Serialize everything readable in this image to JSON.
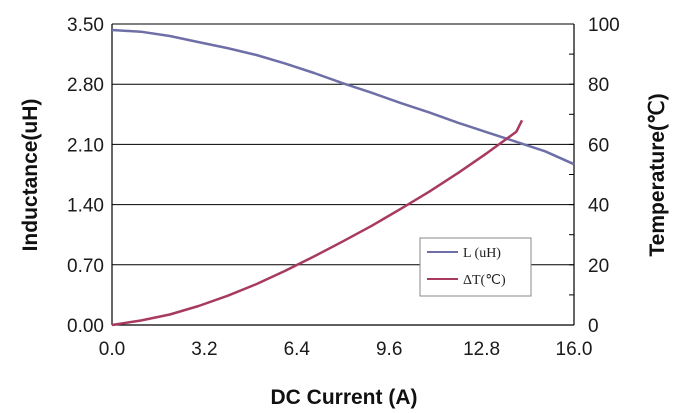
{
  "chart_data": {
    "type": "line",
    "xlabel": "DC Current (A)",
    "ylabel": "Inductance(uH)",
    "y2label": "Temperature(℃)",
    "xlim": [
      0,
      16
    ],
    "ylim": [
      0,
      3.5
    ],
    "y2lim": [
      0,
      100
    ],
    "x_ticks": [
      "0.0",
      "3.2",
      "6.4",
      "9.6",
      "12.8",
      "16.0"
    ],
    "y_ticks": [
      "0.00",
      "0.70",
      "1.40",
      "2.10",
      "2.80",
      "3.50"
    ],
    "y2_ticks": [
      "0",
      "20",
      "40",
      "60",
      "80",
      "100"
    ],
    "grid": "horizontal",
    "legend_position": "lower-right",
    "series": [
      {
        "name": "L (uH)",
        "axis": "left",
        "color": "#6f6fa8",
        "x": [
          0,
          1,
          2,
          3,
          4,
          5,
          6,
          7,
          8,
          9,
          10,
          11,
          12,
          13,
          14,
          15,
          16
        ],
        "y": [
          3.43,
          3.41,
          3.36,
          3.29,
          3.22,
          3.14,
          3.04,
          2.93,
          2.81,
          2.7,
          2.58,
          2.47,
          2.35,
          2.24,
          2.13,
          2.02,
          1.87
        ]
      },
      {
        "name": "ΔT(℃)",
        "axis": "right",
        "color": "#a83a62",
        "x": [
          0,
          1,
          2,
          3,
          4,
          5,
          6,
          7,
          8,
          9,
          10,
          11,
          12,
          13,
          14,
          14.2
        ],
        "y": [
          0,
          1.5,
          3.5,
          6.3,
          9.7,
          13.6,
          18.0,
          22.8,
          27.8,
          33.0,
          38.6,
          44.4,
          50.6,
          57.2,
          64.2,
          68
        ]
      }
    ]
  }
}
